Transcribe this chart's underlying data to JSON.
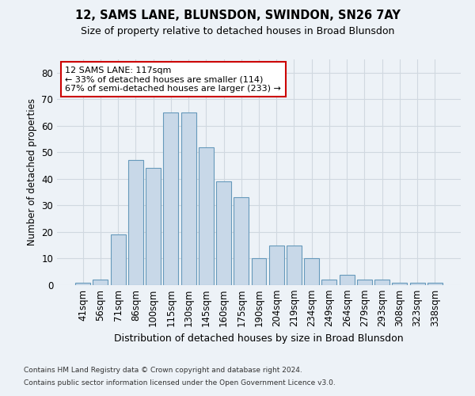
{
  "title1": "12, SAMS LANE, BLUNSDON, SWINDON, SN26 7AY",
  "title2": "Size of property relative to detached houses in Broad Blunsdon",
  "xlabel": "Distribution of detached houses by size in Broad Blunsdon",
  "ylabel": "Number of detached properties",
  "categories": [
    "41sqm",
    "56sqm",
    "71sqm",
    "86sqm",
    "100sqm",
    "115sqm",
    "130sqm",
    "145sqm",
    "160sqm",
    "175sqm",
    "190sqm",
    "204sqm",
    "219sqm",
    "234sqm",
    "249sqm",
    "264sqm",
    "279sqm",
    "293sqm",
    "308sqm",
    "323sqm",
    "338sqm"
  ],
  "values": [
    1,
    2,
    19,
    47,
    44,
    65,
    65,
    52,
    39,
    33,
    10,
    15,
    15,
    10,
    2,
    4,
    2,
    2,
    1,
    1,
    1
  ],
  "bar_color": "#c8d8e8",
  "bar_edge_color": "#6699bb",
  "annotation_text": "12 SAMS LANE: 117sqm\n← 33% of detached houses are smaller (114)\n67% of semi-detached houses are larger (233) →",
  "annotation_box_color": "#ffffff",
  "annotation_box_edge_color": "#cc0000",
  "ylim": [
    0,
    85
  ],
  "yticks": [
    0,
    10,
    20,
    30,
    40,
    50,
    60,
    70,
    80
  ],
  "grid_color": "#d0d8e0",
  "background_color": "#edf2f7",
  "footer1": "Contains HM Land Registry data © Crown copyright and database right 2024.",
  "footer2": "Contains public sector information licensed under the Open Government Licence v3.0."
}
